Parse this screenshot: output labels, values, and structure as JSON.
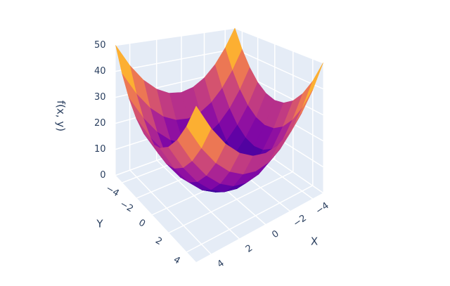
{
  "chart_data": {
    "type": "surface",
    "x_title": "X",
    "y_title": "Y",
    "z_title": "f(x, y)",
    "x": [
      -5,
      -4,
      -3,
      -2,
      -1,
      0,
      1,
      2,
      3,
      4,
      5
    ],
    "y": [
      -5,
      -4,
      -3,
      -2,
      -1,
      0,
      1,
      2,
      3,
      4,
      5
    ],
    "z": [
      [
        50,
        41,
        34,
        29,
        26,
        25,
        26,
        29,
        34,
        41,
        50
      ],
      [
        41,
        32,
        25,
        20,
        17,
        16,
        17,
        20,
        25,
        32,
        41
      ],
      [
        34,
        25,
        18,
        13,
        10,
        9,
        10,
        13,
        18,
        25,
        34
      ],
      [
        29,
        20,
        13,
        8,
        5,
        4,
        5,
        8,
        13,
        20,
        29
      ],
      [
        26,
        17,
        10,
        5,
        2,
        1,
        2,
        5,
        10,
        17,
        26
      ],
      [
        25,
        16,
        9,
        4,
        1,
        0,
        1,
        4,
        9,
        16,
        25
      ],
      [
        26,
        17,
        10,
        5,
        2,
        1,
        2,
        5,
        10,
        17,
        26
      ],
      [
        29,
        20,
        13,
        8,
        5,
        4,
        5,
        8,
        13,
        20,
        29
      ],
      [
        34,
        25,
        18,
        13,
        10,
        9,
        10,
        13,
        18,
        25,
        34
      ],
      [
        41,
        32,
        25,
        20,
        17,
        16,
        17,
        20,
        25,
        32,
        41
      ],
      [
        50,
        41,
        34,
        29,
        26,
        25,
        26,
        29,
        34,
        41,
        50
      ]
    ],
    "xlim": [
      -5,
      5
    ],
    "ylim": [
      -5,
      5
    ],
    "zlim": [
      0,
      50
    ],
    "xticks": [
      {
        "value": -4,
        "label": "−4"
      },
      {
        "value": -2,
        "label": "−2"
      },
      0,
      2,
      4
    ],
    "yticks": [
      {
        "value": -4,
        "label": "−4"
      },
      {
        "value": -2,
        "label": "−2"
      },
      0,
      2,
      4
    ],
    "zticks": [
      0,
      10,
      20,
      30,
      40,
      50
    ],
    "colorscale": [
      "#0d0887",
      "#46039f",
      "#7201a8",
      "#9c179e",
      "#bd3786",
      "#d8576b",
      "#ed7953",
      "#fb9f3a",
      "#fdca26",
      "#f0f921"
    ],
    "grid": true
  }
}
